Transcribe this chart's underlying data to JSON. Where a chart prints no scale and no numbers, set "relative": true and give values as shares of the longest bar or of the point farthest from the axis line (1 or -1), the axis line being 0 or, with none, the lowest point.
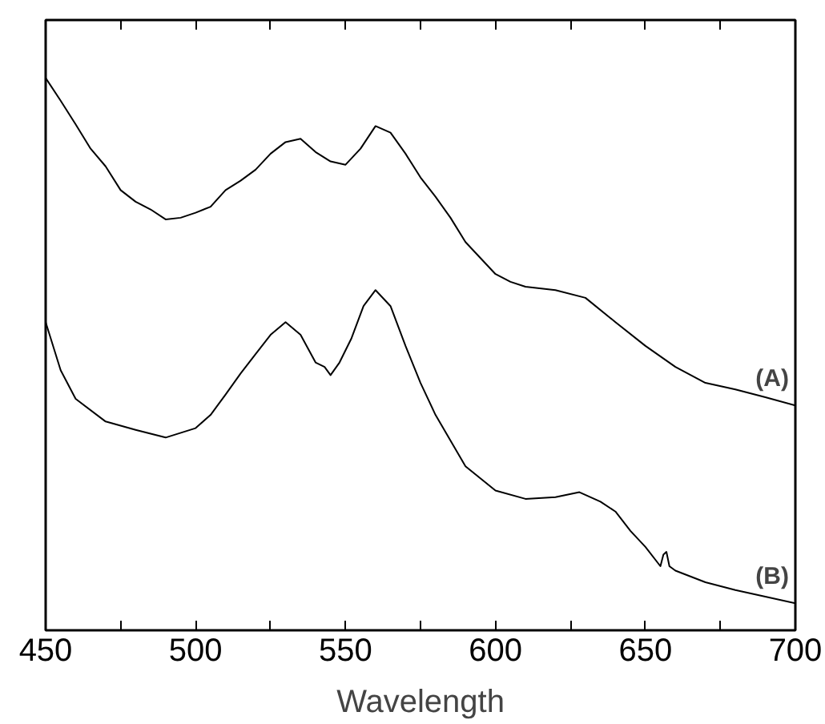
{
  "chart_data": {
    "type": "line",
    "relative": true,
    "xlabel": "Wavelength",
    "xlim": [
      450,
      700
    ],
    "xticks": [
      450,
      {
        "value": 475,
        "label": null
      },
      500,
      {
        "value": 525,
        "label": null
      },
      550,
      {
        "value": 575,
        "label": null
      },
      600,
      {
        "value": 625,
        "label": null
      },
      650,
      {
        "value": 675,
        "label": null
      },
      700
    ],
    "tick_labels": "x",
    "grid": false,
    "legend": false,
    "marker": "none",
    "line_style": "solid",
    "series": [
      {
        "name": "(A)",
        "color": "#000000",
        "x": [
          450,
          455,
          460,
          465,
          470,
          475,
          480,
          485,
          490,
          495,
          500,
          505,
          510,
          515,
          520,
          525,
          530,
          535,
          540,
          545,
          550,
          555,
          560,
          565,
          570,
          575,
          580,
          585,
          590,
          595,
          600,
          605,
          610,
          620,
          630,
          640,
          650,
          660,
          670,
          680,
          690,
          700
        ],
        "values": [
          1.0,
          0.959,
          0.916,
          0.872,
          0.84,
          0.797,
          0.776,
          0.762,
          0.744,
          0.747,
          0.756,
          0.767,
          0.797,
          0.814,
          0.834,
          0.863,
          0.884,
          0.89,
          0.866,
          0.849,
          0.843,
          0.872,
          0.913,
          0.901,
          0.863,
          0.82,
          0.785,
          0.747,
          0.703,
          0.674,
          0.645,
          0.631,
          0.622,
          0.616,
          0.602,
          0.558,
          0.515,
          0.477,
          0.448,
          0.436,
          0.422,
          0.407
        ]
      },
      {
        "name": "(B)",
        "color": "#000000",
        "x": [
          450,
          455,
          460,
          470,
          480,
          490,
          500,
          505,
          510,
          515,
          520,
          525,
          530,
          535,
          540,
          543,
          545,
          548,
          552,
          556,
          560,
          565,
          570,
          575,
          580,
          590,
          600,
          610,
          620,
          628,
          635,
          640,
          645,
          650,
          655,
          656,
          657,
          658,
          660,
          670,
          680,
          690,
          700
        ],
        "values": [
          0.558,
          0.471,
          0.419,
          0.378,
          0.363,
          0.349,
          0.366,
          0.39,
          0.427,
          0.465,
          0.5,
          0.535,
          0.558,
          0.535,
          0.485,
          0.477,
          0.462,
          0.485,
          0.529,
          0.587,
          0.616,
          0.587,
          0.515,
          0.448,
          0.39,
          0.297,
          0.253,
          0.238,
          0.241,
          0.25,
          0.233,
          0.215,
          0.18,
          0.151,
          0.116,
          0.137,
          0.142,
          0.116,
          0.108,
          0.087,
          0.073,
          0.061,
          0.049
        ]
      }
    ]
  }
}
